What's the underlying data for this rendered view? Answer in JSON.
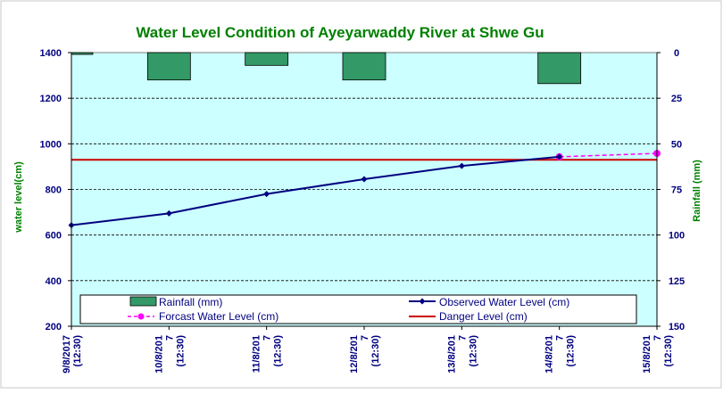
{
  "chart_data": {
    "type": "line",
    "title": "Water Level  Condition of Ayeyarwaddy River at Shwe Gu",
    "ylabel": "water level(cm)",
    "y2label": "Rainfall (mm)",
    "ylim": [
      200,
      1400
    ],
    "yticks": [
      "200",
      "400",
      "600",
      "800",
      "1000",
      "1200",
      "1400"
    ],
    "y2lim": [
      0,
      150
    ],
    "y2ticks": [
      "0",
      "25",
      "50",
      "75",
      "100",
      "125",
      "150"
    ],
    "categories": [
      [
        "9/8/2017",
        "(12:30)"
      ],
      [
        "10/8/201",
        "7",
        "(12:30)"
      ],
      [
        "11/8/201",
        "7",
        "(12:30)"
      ],
      [
        "12/8/201",
        "7",
        "(12:30)"
      ],
      [
        "13/8/201",
        "7",
        "(12:30)"
      ],
      [
        "14/8/201",
        "7",
        "(12:30)"
      ],
      [
        "15/8/201",
        "7",
        "(12:30)"
      ]
    ],
    "rainfall": {
      "name": "Rainfall (mm)",
      "values": [
        1,
        15,
        7,
        15,
        null,
        17,
        null
      ],
      "color": "#339966"
    },
    "observed": {
      "name": "Observed Water Level (cm)",
      "values": [
        643,
        695,
        780,
        845,
        903,
        943,
        null
      ],
      "color": "#000080"
    },
    "forecast": {
      "name": "Forcast Water Level (cm)",
      "values": [
        null,
        null,
        null,
        null,
        null,
        943,
        958
      ],
      "color": "#ff00ff"
    },
    "danger": {
      "name": "Danger Level (cm)",
      "value": 930,
      "color": "#cc0000"
    },
    "legend_position": "bottom",
    "grid": true,
    "plot_background": "#ccffff"
  }
}
